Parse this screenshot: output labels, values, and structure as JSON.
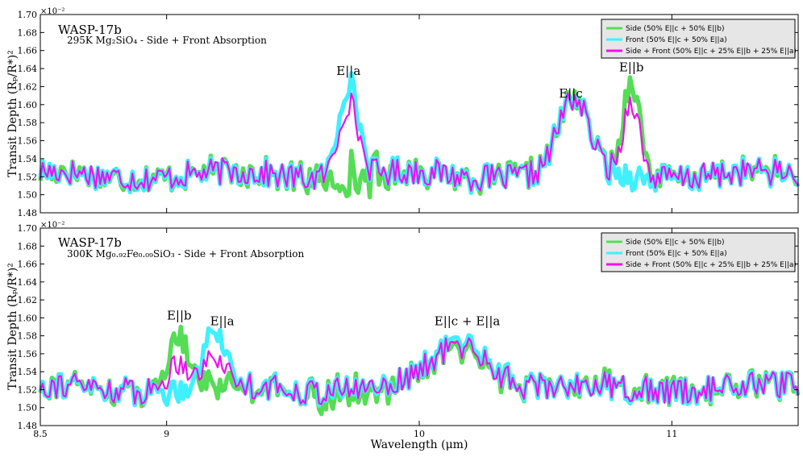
{
  "chart_data": [
    {
      "type": "line",
      "title": "WASP-17b",
      "subtitle": "295K Mg₂SiO₄ - Side + Front Absorption",
      "ylabel": "Transit Depth (Rₚ/R*)²",
      "y_exponent": "×10⁻²",
      "xlim": [
        8.5,
        11.5
      ],
      "ylim": [
        1.48,
        1.7
      ],
      "yticks": [
        "1.48",
        "1.50",
        "1.52",
        "1.54",
        "1.56",
        "1.58",
        "1.60",
        "1.62",
        "1.64",
        "1.66",
        "1.68",
        "1.70"
      ],
      "grid": false,
      "legend_position": "top-right",
      "annotations": [
        {
          "text": "E||a",
          "x": 9.72,
          "y": 1.633
        },
        {
          "text": "E||c",
          "x": 10.6,
          "y": 1.608
        },
        {
          "text": "E||b",
          "x": 10.84,
          "y": 1.637
        }
      ],
      "series": [
        {
          "name": "Side (50% E||c + 50% E||b)",
          "color": "#55dd55",
          "kind": "side",
          "peaks": [
            {
              "x": 10.61,
              "h": 0.082,
              "w": 0.085
            },
            {
              "x": 10.84,
              "h": 0.107,
              "w": 0.045
            }
          ]
        },
        {
          "name": "Front (50% E||c + 50% E||a)",
          "color": "#3ff0ff",
          "kind": "front",
          "peaks": [
            {
              "x": 9.72,
              "h": 0.105,
              "w": 0.055
            },
            {
              "x": 10.61,
              "h": 0.082,
              "w": 0.085
            }
          ]
        },
        {
          "name": "Side + Front (50% E||c + 25% E||b + 25% E||a)",
          "color": "#ee11ee",
          "kind": "combined",
          "peaks": [
            {
              "x": 9.72,
              "h": 0.082,
              "w": 0.055
            },
            {
              "x": 10.61,
              "h": 0.082,
              "w": 0.085
            },
            {
              "x": 10.84,
              "h": 0.085,
              "w": 0.045
            }
          ]
        }
      ]
    },
    {
      "type": "line",
      "title": "WASP-17b",
      "subtitle": "300K Mg₀.₉₂Fe₀.₀₉SiO₃ - Side + Front Absorption",
      "ylabel": "Transit Depth (Rₚ/R*)²",
      "xlabel": "Wavelength (μm)",
      "y_exponent": "×10⁻²",
      "xlim": [
        8.5,
        11.5
      ],
      "ylim": [
        1.48,
        1.7
      ],
      "yticks": [
        "1.48",
        "1.50",
        "1.52",
        "1.54",
        "1.56",
        "1.58",
        "1.60",
        "1.62",
        "1.64",
        "1.66",
        "1.68",
        "1.70"
      ],
      "xticks": [
        "8.5",
        "9",
        "10",
        "11"
      ],
      "xtick_values": [
        8.5,
        9,
        10,
        11
      ],
      "grid": false,
      "legend_position": "top-right",
      "annotations": [
        {
          "text": "E||b",
          "x": 9.05,
          "y": 1.598
        },
        {
          "text": "E||a",
          "x": 9.22,
          "y": 1.592
        },
        {
          "text": "E||c + E||a",
          "x": 10.19,
          "y": 1.592
        }
      ],
      "series": [
        {
          "name": "Side (50% E||c + 50% E||b)",
          "color": "#55dd55",
          "kind": "side",
          "peaks": [
            {
              "x": 9.05,
              "h": 0.06,
              "w": 0.06
            },
            {
              "x": 10.17,
              "h": 0.045,
              "w": 0.16
            }
          ]
        },
        {
          "name": "Front (50% E||c + 50% E||a)",
          "color": "#3ff0ff",
          "kind": "front",
          "peaks": [
            {
              "x": 9.19,
              "h": 0.063,
              "w": 0.06
            },
            {
              "x": 10.17,
              "h": 0.052,
              "w": 0.16
            }
          ]
        },
        {
          "name": "Side + Front (50% E||c + 25% E||b + 25% E||a)",
          "color": "#ee11ee",
          "kind": "combined",
          "peaks": [
            {
              "x": 9.05,
              "h": 0.03,
              "w": 0.06
            },
            {
              "x": 9.19,
              "h": 0.032,
              "w": 0.06
            },
            {
              "x": 10.17,
              "h": 0.048,
              "w": 0.16
            }
          ]
        }
      ]
    }
  ]
}
